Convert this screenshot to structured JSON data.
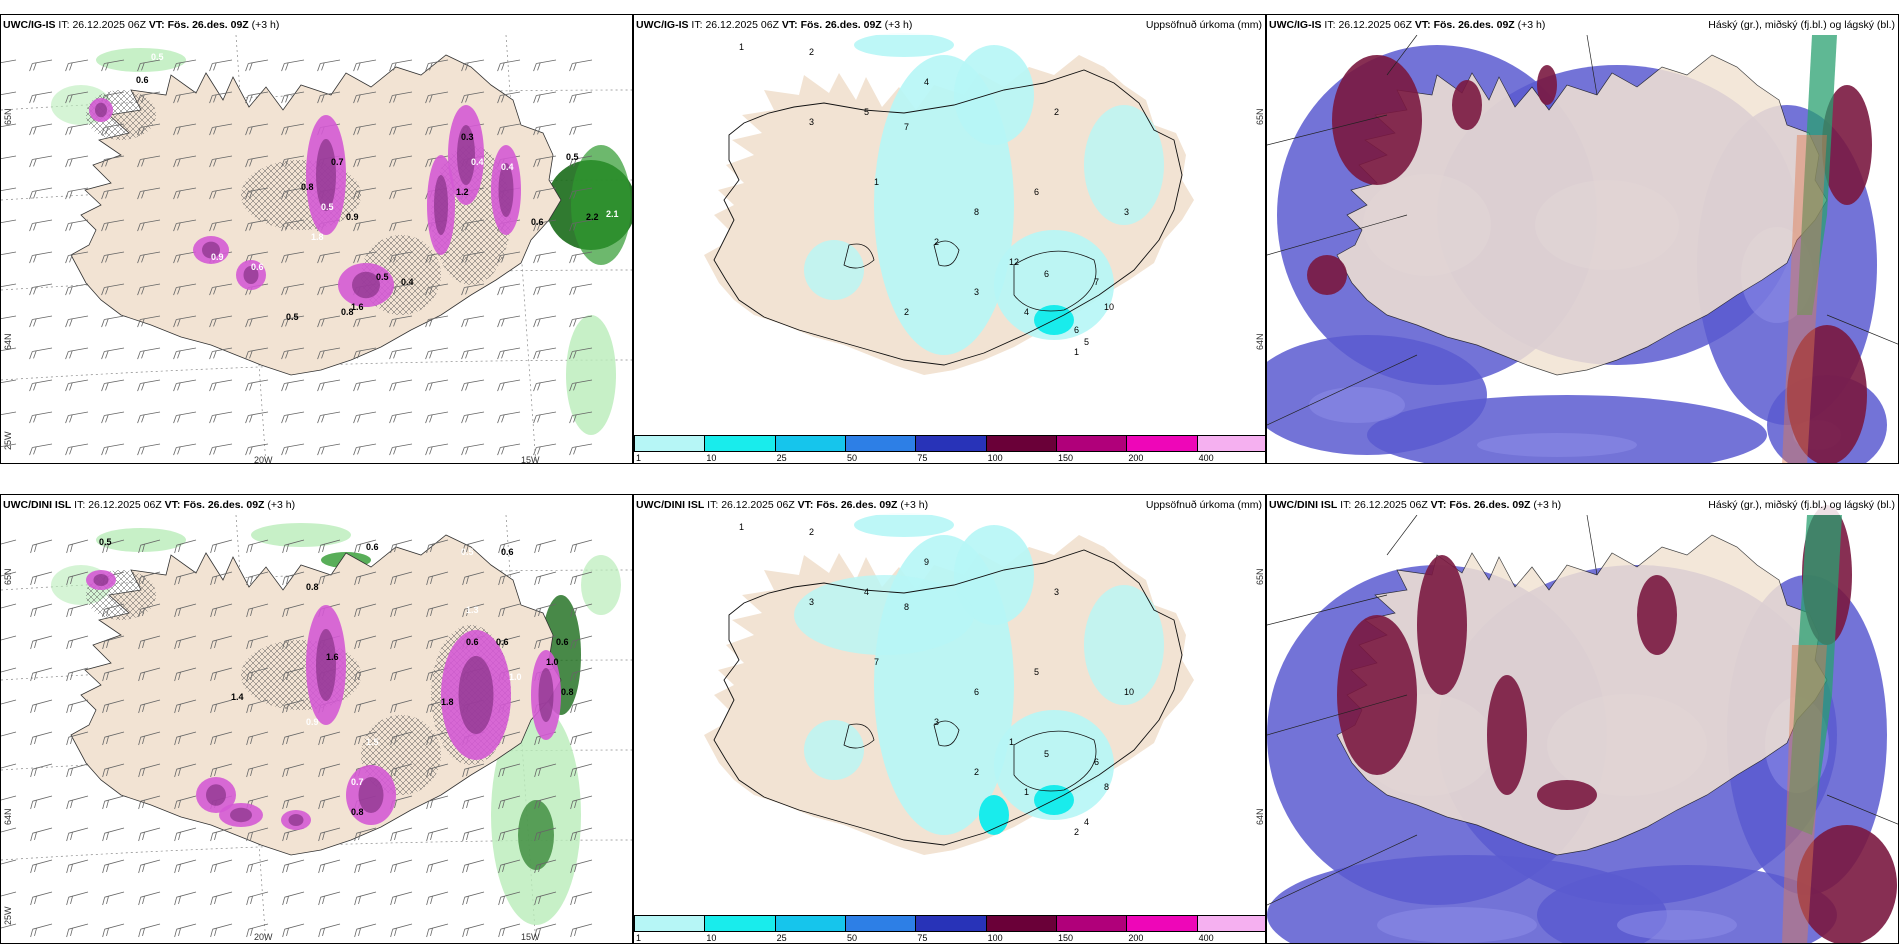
{
  "rows": [
    {
      "model": "UWC/IG-IS",
      "it_label": "IT:",
      "it_value": "26.12.2025 06Z",
      "vt_label": "VT:",
      "vt_value": "Fös. 26.des. 09Z",
      "lead": "(+3 h)",
      "panel_a": {
        "lat_labels": [
          "65N",
          "64N"
        ],
        "lon_labels": [
          "25W",
          "20W",
          "15W"
        ],
        "value_labels": [
          "0.5",
          "0.6",
          "0.5",
          "0.4",
          "0.3",
          "1.2",
          "0.4",
          "0.6",
          "0.8",
          "0.5",
          "0.7",
          "0.9",
          "1.8",
          "0.5",
          "1.6",
          "0.9",
          "0.8",
          "0.4",
          "0.6",
          "0.5",
          "2.2",
          "2.1"
        ]
      },
      "panel_b": {
        "title_right": "Uppsöfnuð úrkoma (mm)",
        "lat_labels": [
          "65N",
          "64N"
        ],
        "value_labels": [
          "1",
          "2",
          "3",
          "5",
          "7",
          "4",
          "6",
          "8",
          "1",
          "2",
          "3",
          "4",
          "5",
          "6",
          "7",
          "3",
          "2",
          "1",
          "12",
          "10",
          "6",
          "2"
        ]
      },
      "panel_c": {
        "title_right": "Háský (gr.), miðský (fj.bl.) og lágský (bl.)"
      }
    },
    {
      "model": "UWC/DINI ISL",
      "it_label": "IT:",
      "it_value": "26.12.2025 06Z",
      "vt_label": "VT:",
      "vt_value": "Fös. 26.des. 09Z",
      "lead": "(+3 h)",
      "panel_a": {
        "lat_labels": [
          "65N",
          "64N"
        ],
        "lon_labels": [
          "25W",
          "20W",
          "15W"
        ],
        "value_labels": [
          "0.5",
          "0.5",
          "0.6",
          "0.5",
          "0.6",
          "0.8",
          "1.3",
          "0.6",
          "0.6",
          "1.0",
          "1.6",
          "1.4",
          "0.9",
          "1.8",
          "0.8",
          "1.5",
          "0.6",
          "1.0",
          "0.7",
          "0.8"
        ]
      },
      "panel_b": {
        "title_right": "Uppsöfnuð úrkoma (mm)",
        "lat_labels": [
          "65N",
          "64N"
        ],
        "value_labels": [
          "1",
          "2",
          "3",
          "4",
          "8",
          "9",
          "5",
          "6",
          "7",
          "3",
          "2",
          "1",
          "4",
          "5",
          "6",
          "10",
          "3",
          "2",
          "1",
          "8"
        ]
      },
      "panel_c": {
        "title_right": "Háský (gr.), miðský (fj.bl.) og lágský (bl.)"
      }
    }
  ],
  "colorbar": {
    "ticks": [
      "1",
      "10",
      "25",
      "50",
      "75",
      "100",
      "150",
      "200",
      "400"
    ],
    "colors": [
      "#b6f6f6",
      "#19ecec",
      "#16c5ec",
      "#2d7fe6",
      "#2833b8",
      "#6a0038",
      "#b0007a",
      "#ee06b8",
      "#f5b0f0"
    ]
  },
  "colors": {
    "land": "#f2e3d3",
    "precip_light": "#b6f6f6",
    "precip_cyan": "#19ecec",
    "snow_magenta": "#d45ad4",
    "snow_dark": "#7a2a7a",
    "green_light": "#b9ecb9",
    "green_dark": "#1a6b1a",
    "cloud_low": "#5a5ad0",
    "cloud_low_light": "#8a8ae6",
    "cloud_mid": "#7a1840",
    "cloud_high": "#2aa070"
  }
}
